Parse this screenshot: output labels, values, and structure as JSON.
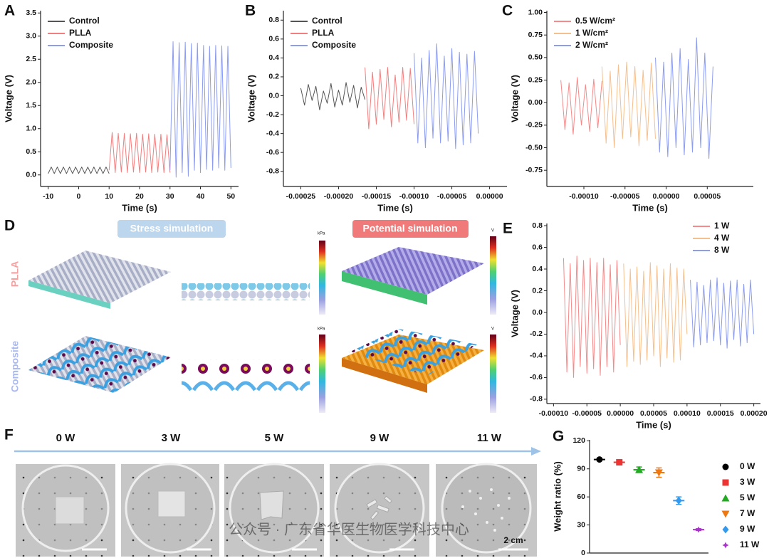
{
  "chart_data": [
    {
      "panel": "A",
      "type": "line",
      "xlabel": "Time (s)",
      "ylabel": "Voltage (V)",
      "legend": "upper left",
      "xlim": [
        -12.5,
        52.5
      ],
      "xticks": [
        -10,
        0,
        10,
        20,
        30,
        40,
        50
      ],
      "ylim": [
        -0.25,
        3.55
      ],
      "yticks": [
        {
          "value": 0,
          "label": "0.0"
        },
        0.5,
        {
          "value": 1,
          "label": "1.0"
        },
        1.5,
        {
          "value": 2,
          "label": "2.0"
        },
        2.5,
        {
          "value": 3,
          "label": "3.0"
        },
        3.5
      ],
      "series": [
        {
          "name": "Control",
          "color": "#555555",
          "x": [
            -10,
            -9,
            -8,
            -7,
            -6,
            -5,
            -4,
            -3,
            -2,
            -1,
            0,
            1,
            2,
            3,
            4,
            5,
            6,
            7,
            8,
            9,
            10
          ],
          "values": [
            0.03,
            0.17,
            0.03,
            0.17,
            0.03,
            0.17,
            0.03,
            0.17,
            0.03,
            0.17,
            0.03,
            0.17,
            0.03,
            0.17,
            0.03,
            0.17,
            0.03,
            0.17,
            0.03,
            0.17,
            0.03
          ]
        },
        {
          "name": "PLLA",
          "color": "#f27f7f",
          "x": [
            10,
            11,
            12,
            13,
            14,
            15,
            16,
            17,
            18,
            19,
            20,
            21,
            22,
            23,
            24,
            25,
            26,
            27,
            28,
            29,
            30
          ],
          "values": [
            0.1,
            0.92,
            0.05,
            0.9,
            0.06,
            0.9,
            0.05,
            0.89,
            0.06,
            0.9,
            0.05,
            0.88,
            0.06,
            0.89,
            0.05,
            0.88,
            0.06,
            0.88,
            0.05,
            0.87,
            0.05
          ]
        },
        {
          "name": "Composite",
          "color": "#8c9cf0",
          "x": [
            30,
            31,
            32,
            33,
            34,
            35,
            36,
            37,
            38,
            39,
            40,
            41,
            42,
            43,
            44,
            45,
            46,
            47,
            48,
            49,
            50
          ],
          "values": [
            0.1,
            2.88,
            -0.05,
            2.86,
            0.05,
            2.87,
            -0.03,
            2.84,
            0.1,
            2.85,
            0.05,
            2.8,
            0.12,
            2.78,
            0.1,
            2.8,
            0.15,
            2.79,
            0.1,
            2.78,
            0.15
          ]
        }
      ]
    },
    {
      "panel": "B",
      "type": "line",
      "xlabel": "Time (s)",
      "ylabel": "Voltage (V)",
      "legend": "upper left",
      "xlim": [
        -0.000273,
        2.3e-05
      ],
      "xticks": [
        -0.00025,
        {
          "value": -0.0002,
          "label": "-0.00020"
        },
        -0.00015,
        {
          "value": -0.0001,
          "label": "-0.00010"
        },
        -5e-05,
        {
          "value": 0,
          "label": "0.00000"
        }
      ],
      "ylim": [
        -0.96,
        0.9
      ],
      "yticks": [
        -0.8,
        -0.6,
        -0.4,
        -0.2,
        {
          "value": 0,
          "label": "0.0"
        },
        0.2,
        0.4,
        0.6,
        0.8
      ],
      "series": [
        {
          "name": "Control",
          "color": "#555555",
          "x": [
            -0.00025,
            -0.000245,
            -0.00024,
            -0.000235,
            -0.00023,
            -0.000225,
            -0.00022,
            -0.000215,
            -0.00021,
            -0.000205,
            -0.0002,
            -0.000195,
            -0.00019,
            -0.000185,
            -0.00018,
            -0.000175,
            -0.00017,
            -0.000165
          ],
          "values": [
            0.08,
            -0.1,
            0.12,
            -0.05,
            0.1,
            -0.15,
            0.05,
            -0.08,
            0.13,
            -0.12,
            0.06,
            -0.1,
            0.14,
            -0.07,
            0.11,
            -0.13,
            0.09,
            -0.04
          ]
        },
        {
          "name": "PLLA",
          "color": "#f27f7f",
          "x": [
            -0.000165,
            -0.00016,
            -0.000155,
            -0.00015,
            -0.000145,
            -0.00014,
            -0.000135,
            -0.00013,
            -0.000125,
            -0.00012,
            -0.000115,
            -0.00011,
            -0.000105,
            -0.0001
          ],
          "values": [
            0.3,
            -0.35,
            0.25,
            -0.3,
            0.28,
            -0.25,
            0.3,
            -0.33,
            0.22,
            -0.28,
            0.3,
            -0.26,
            0.29,
            -0.3
          ]
        },
        {
          "name": "Composite",
          "color": "#8c9cf0",
          "x": [
            -0.0001,
            -9.5e-05,
            -9e-05,
            -8.5e-05,
            -8e-05,
            -7.5e-05,
            -7e-05,
            -6.5e-05,
            -6e-05,
            -5.5e-05,
            -5e-05,
            -4.5e-05,
            -4e-05,
            -3.5e-05,
            -3e-05,
            -2.5e-05,
            -2e-05,
            -1.5e-05
          ],
          "values": [
            0.45,
            -0.5,
            0.4,
            -0.55,
            0.48,
            -0.45,
            0.55,
            -0.5,
            0.42,
            -0.48,
            0.5,
            -0.56,
            0.46,
            -0.52,
            0.44,
            -0.5,
            0.47,
            -0.4
          ]
        }
      ]
    },
    {
      "panel": "C",
      "type": "line",
      "xlabel": "Time (s)",
      "ylabel": "Voltage (V)",
      "legend": "upper left",
      "xlim": [
        -0.000145,
        0.000106
      ],
      "xticks": [
        {
          "value": -0.0001,
          "label": "-0.00010"
        },
        -5e-05,
        {
          "value": 0,
          "label": "0.00000"
        },
        5e-05
      ],
      "ylim": [
        -0.93,
        1.02
      ],
      "yticks": [
        -0.75,
        {
          "value": -0.5,
          "label": "-0.50"
        },
        -0.25,
        {
          "value": 0,
          "label": "0.00"
        },
        0.25,
        {
          "value": 0.5,
          "label": "0.50"
        },
        0.75,
        {
          "value": 1,
          "label": "1.00"
        }
      ],
      "series": [
        {
          "name": "0.5 W/cm²",
          "color": "#f58a8a",
          "x": [
            -0.000128,
            -0.000123,
            -0.000118,
            -0.000113,
            -0.000108,
            -0.000103,
            -9.8e-05,
            -9.3e-05,
            -8.8e-05,
            -8.3e-05,
            -7.8e-05
          ],
          "values": [
            0.25,
            -0.3,
            0.22,
            -0.35,
            0.28,
            -0.25,
            0.2,
            -0.32,
            0.26,
            -0.28,
            0.24
          ]
        },
        {
          "name": "1 W/cm²",
          "color": "#f5c08f",
          "x": [
            -7.8e-05,
            -7.3e-05,
            -6.8e-05,
            -6.3e-05,
            -5.8e-05,
            -5.3e-05,
            -4.8e-05,
            -4.3e-05,
            -3.8e-05,
            -3.3e-05,
            -2.8e-05,
            -2.3e-05,
            -1.8e-05,
            -1.3e-05
          ],
          "values": [
            0.4,
            -0.45,
            0.35,
            -0.5,
            0.42,
            -0.4,
            0.45,
            -0.38,
            0.4,
            -0.48,
            0.36,
            -0.42,
            0.44,
            -0.4
          ]
        },
        {
          "name": "2 W/cm²",
          "color": "#8c9cf0",
          "x": [
            -1.3e-05,
            -8e-06,
            -3e-06,
            2e-06,
            7e-06,
            1.2e-05,
            1.7e-05,
            2.2e-05,
            2.7e-05,
            3.2e-05,
            3.7e-05,
            4.2e-05,
            4.7e-05,
            5.2e-05,
            5.7e-05
          ],
          "values": [
            0.5,
            -0.55,
            0.45,
            -0.6,
            0.55,
            -0.5,
            0.6,
            -0.58,
            0.48,
            -0.55,
            0.72,
            -0.5,
            0.55,
            -0.62,
            0.4
          ]
        }
      ]
    },
    {
      "panel": "E",
      "type": "line",
      "xlabel": "Time (s)",
      "ylabel": "Voltage (V)",
      "legend": "upper right",
      "xlim": [
        -0.00011,
        0.00021
      ],
      "xticks": [
        {
          "value": -0.0001,
          "label": "-0.00010"
        },
        -5e-05,
        {
          "value": 0,
          "label": "0.00000"
        },
        5e-05,
        {
          "value": 0.0001,
          "label": "0.00010"
        },
        0.00015,
        {
          "value": 0.0002,
          "label": "0.00020"
        }
      ],
      "ylim": [
        -0.84,
        0.82
      ],
      "yticks": [
        -0.8,
        -0.6,
        -0.4,
        -0.2,
        {
          "value": 0,
          "label": "0.0"
        },
        0.2,
        0.4,
        0.6,
        0.8
      ],
      "series": [
        {
          "name": "1 W",
          "color": "#f58a8a",
          "x": [
            -8.5e-05,
            -8e-05,
            -7.5e-05,
            -7e-05,
            -6.5e-05,
            -6e-05,
            -5.5e-05,
            -5e-05,
            -4.5e-05,
            -4e-05,
            -3.5e-05,
            -3e-05,
            -2.5e-05,
            -2e-05,
            -1.5e-05,
            -1e-05,
            -5e-06,
            0
          ],
          "values": [
            0.5,
            -0.55,
            0.45,
            -0.6,
            0.52,
            -0.5,
            0.48,
            -0.56,
            0.5,
            -0.52,
            0.46,
            -0.58,
            0.5,
            -0.5,
            0.44,
            -0.55,
            0.48,
            -0.3
          ]
        },
        {
          "name": "4 W",
          "color": "#f5c08f",
          "x": [
            5e-06,
            1e-05,
            1.5e-05,
            2e-05,
            2.5e-05,
            3e-05,
            3.5e-05,
            4e-05,
            4.5e-05,
            5e-05,
            5.5e-05,
            6e-05,
            6.5e-05,
            7e-05,
            7.5e-05,
            8e-05,
            8.5e-05,
            9e-05,
            9.5e-05,
            0.0001
          ],
          "values": [
            0.45,
            -0.5,
            0.4,
            -0.45,
            0.42,
            -0.48,
            0.38,
            -0.44,
            0.46,
            -0.4,
            0.43,
            -0.5,
            0.4,
            -0.42,
            0.45,
            -0.46,
            0.41,
            -0.44,
            0.4,
            -0.2
          ]
        },
        {
          "name": "8 W",
          "color": "#8c9cf0",
          "x": [
            0.000105,
            0.00011,
            0.000115,
            0.00012,
            0.000125,
            0.00013,
            0.000135,
            0.00014,
            0.000145,
            0.00015,
            0.000155,
            0.00016,
            0.000165,
            0.00017,
            0.000175,
            0.00018,
            0.000185,
            0.00019,
            0.000195,
            0.0002
          ],
          "values": [
            0.3,
            -0.32,
            0.28,
            -0.3,
            0.25,
            -0.28,
            0.3,
            -0.26,
            0.32,
            -0.3,
            0.27,
            -0.33,
            0.29,
            -0.25,
            0.3,
            -0.31,
            0.26,
            -0.28,
            0.3,
            -0.2
          ]
        }
      ]
    },
    {
      "panel": "G",
      "type": "scatter",
      "ylabel": "Weight ratio (%)",
      "legend": "right",
      "ylim": [
        0,
        121
      ],
      "yticks": [
        0,
        30,
        60,
        90,
        120
      ],
      "categories": [
        "0 W",
        "3 W",
        "5 W",
        "7 W",
        "9 W",
        "11 W"
      ],
      "values": [
        100,
        97,
        89,
        86,
        56,
        25
      ],
      "errors": [
        0,
        1,
        3,
        5,
        4,
        1
      ],
      "colors": [
        "#000000",
        "#ee3333",
        "#22aa22",
        "#ee7711",
        "#3399ee",
        "#aa33cc"
      ],
      "markers": [
        "circle",
        "square",
        "triangle-up",
        "triangle-down",
        "diamond",
        "star"
      ]
    }
  ],
  "panel_d": {
    "label": "D",
    "stress_title": "Stress simulation",
    "potential_title": "Potential simulation",
    "rows": [
      "PLLA",
      "Composite"
    ],
    "colorbar_units": [
      "kPa",
      "V",
      "kPa",
      "V"
    ]
  },
  "panel_f": {
    "label": "F",
    "labels": [
      "0 W",
      "3 W",
      "5 W",
      "9 W",
      "11 W"
    ],
    "scale": "2 cm"
  },
  "watermark": "公众号 · 广东省华医生物医学科技中心"
}
